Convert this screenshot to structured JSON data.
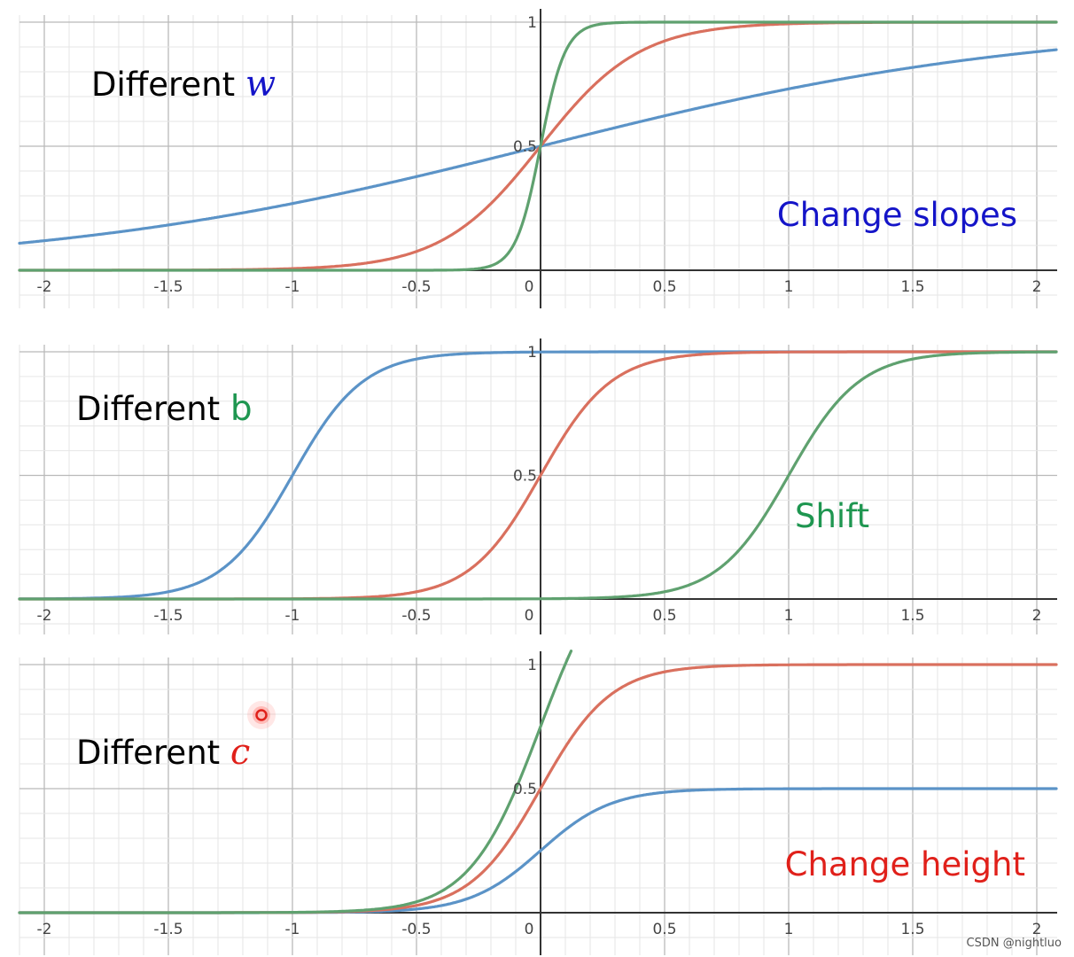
{
  "chart_data": [
    {
      "type": "line",
      "title": "",
      "caption_prefix": "Different ",
      "parameter": "w",
      "annotation": "Change slopes",
      "x_ticks": [
        "-2",
        "-1.5",
        "-1",
        "-0.5",
        "0",
        "0.5",
        "1",
        "1.5",
        "2"
      ],
      "y_ticks": [
        "0.5",
        "1"
      ],
      "xlim": [
        -2.05,
        2.1
      ],
      "ylim": [
        0,
        1
      ],
      "grid": true,
      "series": [
        {
          "color": "#5b93c7",
          "function": "sigmoid",
          "w": 1,
          "b": 0,
          "c": 1
        },
        {
          "color": "#d9705e",
          "function": "sigmoid",
          "w": 5,
          "b": 0,
          "c": 1
        },
        {
          "color": "#5fa16f",
          "function": "sigmoid",
          "w": 20,
          "b": 0,
          "c": 1
        }
      ],
      "colors": {
        "parameter": "#1414c8",
        "annotation": "#1414c8"
      }
    },
    {
      "type": "line",
      "title": "",
      "caption_prefix": "Different ",
      "parameter": "b",
      "annotation": "Shift",
      "x_ticks": [
        "-2",
        "-1.5",
        "-1",
        "-0.5",
        "0",
        "0.5",
        "1",
        "1.5",
        "2"
      ],
      "y_ticks": [
        "0.5",
        "1"
      ],
      "xlim": [
        -2.05,
        2.1
      ],
      "ylim": [
        0,
        1
      ],
      "grid": true,
      "series": [
        {
          "color": "#5b93c7",
          "function": "sigmoid",
          "w": 7,
          "b": 7,
          "c": 1
        },
        {
          "color": "#d9705e",
          "function": "sigmoid",
          "w": 7,
          "b": 0,
          "c": 1
        },
        {
          "color": "#5fa16f",
          "function": "sigmoid",
          "w": 7,
          "b": -7,
          "c": 1
        }
      ],
      "colors": {
        "parameter": "#1e9650",
        "annotation": "#1e9650"
      }
    },
    {
      "type": "line",
      "title": "",
      "caption_prefix": "Different ",
      "parameter": "c",
      "annotation": "Change height",
      "x_ticks": [
        "-2",
        "-1.5",
        "-1",
        "-0.5",
        "0",
        "0.5",
        "1",
        "1.5",
        "2"
      ],
      "y_ticks": [
        "0.5",
        "1"
      ],
      "xlim": [
        -2.05,
        2.1
      ],
      "ylim": [
        0,
        1
      ],
      "grid": true,
      "series": [
        {
          "color": "#5b93c7",
          "function": "sigmoid",
          "w": 7,
          "b": 0,
          "c": 0.5
        },
        {
          "color": "#d9705e",
          "function": "sigmoid",
          "w": 7,
          "b": 0,
          "c": 1
        },
        {
          "color": "#5fa16f",
          "function": "sigmoid",
          "w": 7,
          "b": 0,
          "c": 1.5
        }
      ],
      "colors": {
        "parameter": "#e0201a",
        "annotation": "#e0201a"
      }
    }
  ],
  "watermark": "CSDN @nightluo",
  "cursor_icon": "red-dot-cursor"
}
